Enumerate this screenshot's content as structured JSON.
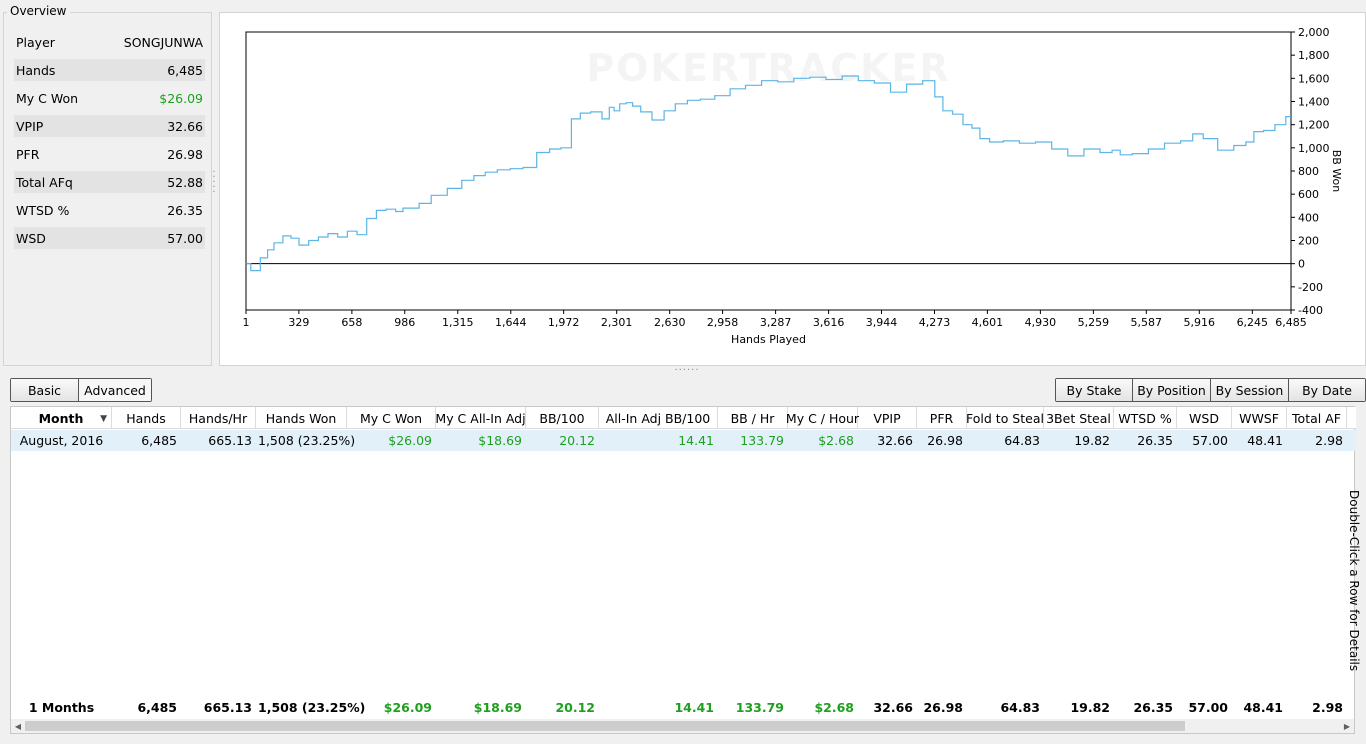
{
  "overview": {
    "title": "Overview",
    "rows": [
      {
        "label": "Player",
        "value": "SONGJUNWA"
      },
      {
        "label": "Hands",
        "value": "6,485"
      },
      {
        "label": "My C Won",
        "value": "$26.09"
      },
      {
        "label": "VPIP",
        "value": "32.66"
      },
      {
        "label": "PFR",
        "value": "26.98"
      },
      {
        "label": "Total AFq",
        "value": "52.88"
      },
      {
        "label": "WTSD %",
        "value": "26.35"
      },
      {
        "label": "WSD",
        "value": "57.00"
      }
    ]
  },
  "chart_data": {
    "type": "line",
    "watermark": "POKERTRACKER",
    "xlabel": "Hands Played",
    "ylabel": "BB Won",
    "xlim": [
      1,
      6485
    ],
    "ylim": [
      -400,
      2000
    ],
    "x_ticks": [
      "1",
      "329",
      "658",
      "986",
      "1,315",
      "1,644",
      "1,972",
      "2,301",
      "2,630",
      "2,958",
      "3,287",
      "3,616",
      "3,944",
      "4,273",
      "4,601",
      "4,930",
      "5,259",
      "5,587",
      "5,916",
      "6,245",
      "6,485"
    ],
    "y_ticks": [
      "2,000",
      "1,800",
      "1,600",
      "1,400",
      "1,200",
      "1,000",
      "800",
      "600",
      "400",
      "200",
      "0",
      "-200",
      "-400"
    ],
    "series": [
      {
        "color": "#5bb5e6",
        "x": [
          1,
          60,
          120,
          150,
          200,
          260,
          300,
          360,
          420,
          480,
          540,
          600,
          660,
          720,
          780,
          840,
          900,
          960,
          990,
          1050,
          1100,
          1200,
          1300,
          1380,
          1450,
          1520,
          1600,
          1680,
          1760,
          1850,
          1920,
          1990,
          2050,
          2100,
          2180,
          2240,
          2270,
          2300,
          2340,
          2380,
          2420,
          2480,
          2560,
          2630,
          2700,
          2780,
          2860,
          2960,
          3050,
          3150,
          3250,
          3350,
          3450,
          3550,
          3650,
          3750,
          3850,
          3950,
          4050,
          4150,
          4250,
          4300,
          4350,
          4420,
          4480,
          4530,
          4580,
          4650,
          4750,
          4850,
          4950,
          5050,
          5150,
          5250,
          5350,
          5400,
          5450,
          5550,
          5650,
          5750,
          5850,
          5900,
          5980,
          6080,
          6180,
          6230,
          6280,
          6350,
          6420,
          6485
        ],
        "y": [
          0,
          -60,
          50,
          120,
          180,
          240,
          220,
          160,
          200,
          230,
          260,
          230,
          280,
          250,
          390,
          460,
          470,
          450,
          480,
          480,
          520,
          590,
          650,
          720,
          760,
          790,
          810,
          820,
          830,
          960,
          990,
          1000,
          1250,
          1300,
          1310,
          1250,
          1350,
          1320,
          1380,
          1390,
          1360,
          1310,
          1240,
          1320,
          1380,
          1410,
          1420,
          1450,
          1510,
          1540,
          1580,
          1570,
          1600,
          1610,
          1590,
          1620,
          1580,
          1560,
          1480,
          1550,
          1580,
          1440,
          1320,
          1290,
          1200,
          1170,
          1080,
          1050,
          1060,
          1040,
          1050,
          990,
          930,
          990,
          960,
          980,
          940,
          950,
          990,
          1040,
          1060,
          1120,
          1080,
          980,
          1020,
          1050,
          1140,
          1150,
          1200,
          1270
        ]
      }
    ]
  },
  "view_buttons": [
    {
      "label": "Basic",
      "active": false
    },
    {
      "label": "Advanced",
      "active": true
    }
  ],
  "group_buttons": [
    {
      "label": "By Stake"
    },
    {
      "label": "By Position"
    },
    {
      "label": "By Session"
    },
    {
      "label": "By Date"
    }
  ],
  "table": {
    "columns": [
      "Month",
      "Hands",
      "Hands/Hr",
      "Hands Won",
      "My C Won",
      "My C All-In Adj",
      "BB/100",
      "All-In Adj BB/100",
      "BB / Hr",
      "My C / Hour",
      "VPIP",
      "PFR",
      "Fold to Steal",
      "3Bet Steal",
      "WTSD %",
      "WSD",
      "WWSF",
      "Total AF"
    ],
    "rows": [
      [
        "August, 2016",
        "6,485",
        "665.13",
        "1,508 (23.25%)",
        "$26.09",
        "$18.69",
        "20.12",
        "14.41",
        "133.79",
        "$2.68",
        "32.66",
        "26.98",
        "64.83",
        "19.82",
        "26.35",
        "57.00",
        "48.41",
        "2.98"
      ]
    ],
    "totals": [
      "1 Months",
      "6,485",
      "665.13",
      "1,508 (23.25%)",
      "$26.09",
      "$18.69",
      "20.12",
      "14.41",
      "133.79",
      "$2.68",
      "32.66",
      "26.98",
      "64.83",
      "19.82",
      "26.35",
      "57.00",
      "48.41",
      "2.98"
    ],
    "green_columns": [
      4,
      5,
      6,
      7,
      8,
      9
    ],
    "side_hint": "Double-Click a Row for Details"
  }
}
